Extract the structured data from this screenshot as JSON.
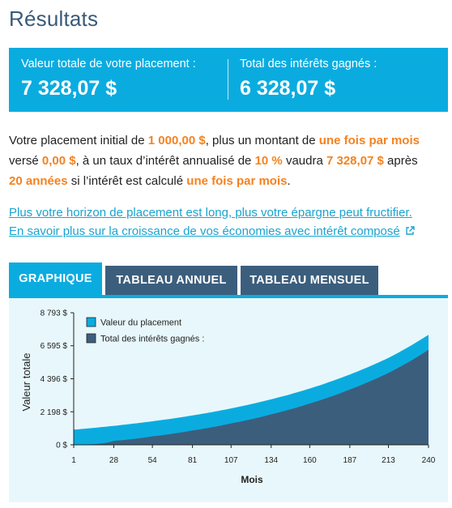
{
  "page": {
    "title": "Résultats"
  },
  "summary": {
    "total_label": "Valeur totale de votre placement :",
    "total_value": "7 328,07 $",
    "interest_label": "Total des intérêts gagnés :",
    "interest_value": "6 328,07 $"
  },
  "description": {
    "p1": "Votre placement initial de ",
    "initial": "1 000,00 $",
    "p2": ", plus un montant de ",
    "freq1": "une fois par mois",
    "p3": "versé ",
    "contribution": "0,00 $",
    "p4": ", à un taux d’intérêt annualisé de ",
    "rate": "10 %",
    "p5": " vaudra ",
    "final": "7 328,07 $",
    "p6": " après",
    "years": "20 années",
    "p7": " si l’intérêt est calculé ",
    "freq2": "une fois par mois",
    "p8": "."
  },
  "links": {
    "line1": "Plus votre horizon de placement est long, plus votre épargne peut fructifier.",
    "line2": "En savoir plus sur la croissance de vos économies avec intérêt composé"
  },
  "tabs": [
    {
      "label": "GRAPHIQUE",
      "active": true
    },
    {
      "label": "TABLEAU ANNUEL",
      "active": false
    },
    {
      "label": "TABLEAU MENSUEL",
      "active": false
    }
  ],
  "colors": {
    "accent": "#0aace0",
    "navy": "#3c5e7d",
    "highlight": "#f58220",
    "link": "#1aa3cf",
    "chart_bg": "#e8f7fb"
  },
  "icons": {
    "external_link": "external-link-icon"
  },
  "chart_data": {
    "type": "area",
    "xlabel": "Mois",
    "ylabel": "Valeur totale",
    "xlim": [
      1,
      240
    ],
    "ylim": [
      0,
      8793
    ],
    "x_ticks": [
      1,
      28,
      54,
      81,
      107,
      134,
      160,
      187,
      213,
      240
    ],
    "y_ticks": [
      {
        "value": 0,
        "label": "0 $"
      },
      {
        "value": 2198,
        "label": "2 198 $"
      },
      {
        "value": 4396,
        "label": "4 396 $"
      },
      {
        "value": 6595,
        "label": "6 595 $"
      },
      {
        "value": 8793,
        "label": "8 793 $"
      }
    ],
    "legend_position": "top-left",
    "series": [
      {
        "name": "Valeur du placement",
        "color": "#0aace0",
        "x": [
          1,
          28,
          54,
          81,
          107,
          134,
          160,
          187,
          213,
          240
        ],
        "values": [
          1008,
          1262,
          1565,
          1954,
          2422,
          3028,
          3747,
          4683,
          5788,
          7328
        ]
      },
      {
        "name": "Total des intérêts gagnés :",
        "color": "#3c5e7d",
        "x": [
          1,
          28,
          54,
          81,
          107,
          134,
          160,
          187,
          213,
          240
        ],
        "values": [
          8,
          262,
          565,
          954,
          1422,
          2028,
          2747,
          3683,
          4788,
          6328
        ]
      }
    ],
    "grid": false
  }
}
